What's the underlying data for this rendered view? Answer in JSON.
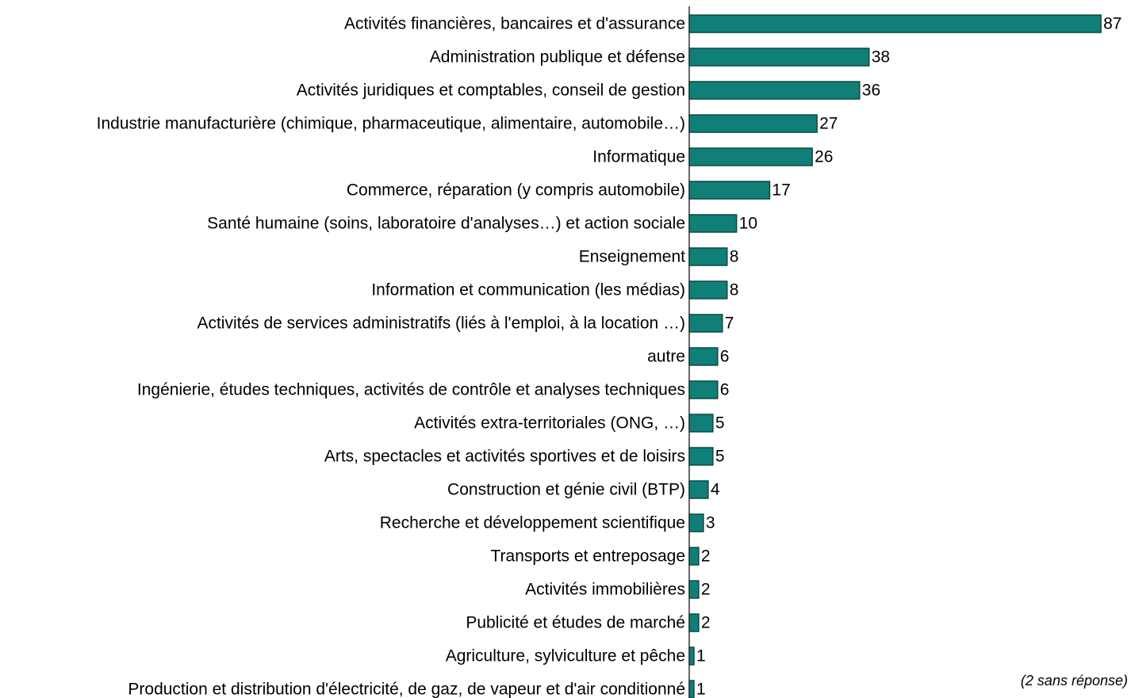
{
  "chart_data": {
    "type": "barh",
    "categories": [
      "Activités financières, bancaires et d'assurance",
      "Administration publique et défense",
      "Activités juridiques et comptables, conseil de gestion",
      "Industrie manufacturière (chimique, pharmaceutique, alimentaire, automobile…)",
      "Informatique",
      "Commerce, réparation (y compris automobile)",
      "Santé humaine (soins, laboratoire d'analyses…) et action sociale",
      "Enseignement",
      "Information et communication (les médias)",
      "Activités de services administratifs (liés à l'emploi, à la location …)",
      "autre",
      "Ingénierie, études techniques, activités de contrôle et analyses techniques",
      "Activités extra-territoriales (ONG, …)",
      "Arts, spectacles et activités sportives et de loisirs",
      "Construction et génie civil (BTP)",
      "Recherche et développement scientifique",
      "Transports et entreposage",
      "Activités immobilières",
      "Publicité et études de marché",
      "Agriculture, sylviculture et pêche",
      "Production et distribution d'électricité, de gaz, de vapeur et d'air conditionné"
    ],
    "values": [
      87,
      38,
      36,
      27,
      26,
      17,
      10,
      8,
      8,
      7,
      6,
      6,
      5,
      5,
      4,
      3,
      2,
      2,
      2,
      1,
      1
    ],
    "color": "#0f7f77",
    "xlim": [
      0,
      90
    ],
    "annotation": "(2 sans réponse)"
  }
}
